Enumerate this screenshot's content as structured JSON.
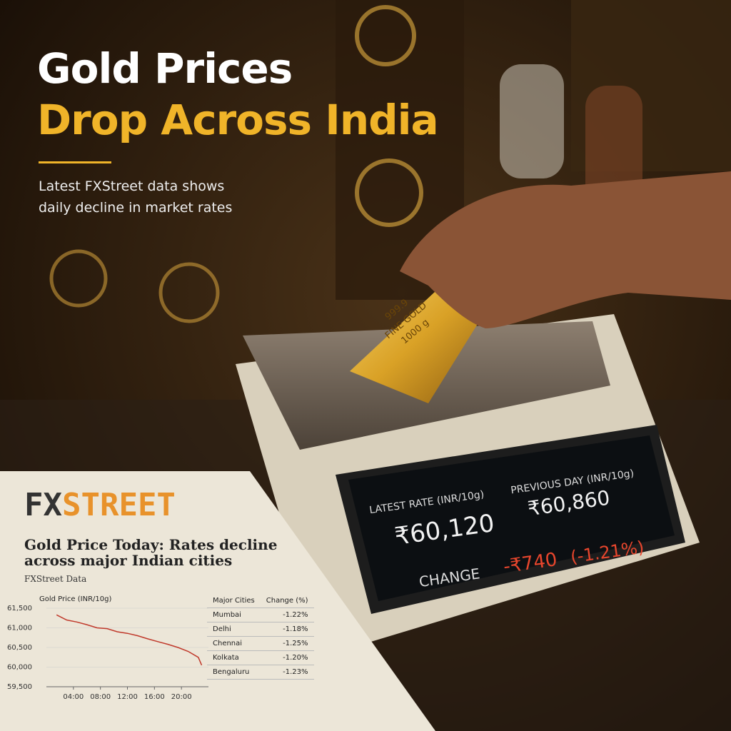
{
  "headline": {
    "line1": "Gold Prices",
    "line2": "Drop Across India"
  },
  "subtitle": {
    "line1": "Latest FXStreet data shows",
    "line2": "daily decline in market rates"
  },
  "gold_bar": {
    "purity": "999.9",
    "grade": "FINE GOLD",
    "weight": "1000 g"
  },
  "scale_display": {
    "latest_label": "LATEST RATE (INR/10g)",
    "latest_value": "₹60,120",
    "previous_label": "PREVIOUS DAY (INR/10g)",
    "previous_value": "₹60,860",
    "change_label": "CHANGE",
    "change_value": "-₹740",
    "change_pct": "(-1.21%)"
  },
  "newspaper": {
    "brand_fx": "FX",
    "brand_street": "STREET",
    "headline": "Gold Price Today: Rates decline across major Indian cities",
    "byline": "FXStreet Data",
    "table": {
      "headers": [
        "Major Cities",
        "Change (%)"
      ],
      "rows": [
        [
          "Mumbai",
          "-1.22%"
        ],
        [
          "Delhi",
          "-1.18%"
        ],
        [
          "Chennai",
          "-1.25%"
        ],
        [
          "Kolkata",
          "-1.20%"
        ],
        [
          "Bengaluru",
          "-1.23%"
        ]
      ]
    }
  },
  "chart_data": {
    "type": "line",
    "title": "Gold Price (INR/10g)",
    "x": [
      1.5,
      3,
      4.5,
      6,
      7.5,
      9,
      10.5,
      12,
      13.5,
      15,
      16.5,
      18,
      19.5,
      21,
      22.5,
      23
    ],
    "values": [
      61330,
      61200,
      61150,
      61080,
      61000,
      60980,
      60900,
      60860,
      60800,
      60720,
      60650,
      60580,
      60500,
      60400,
      60250,
      60050
    ],
    "color": "#c0392b",
    "xlim": [
      0,
      24
    ],
    "xticks": [
      {
        "value": 4,
        "label": "04:00"
      },
      {
        "value": 8,
        "label": "08:00"
      },
      {
        "value": 12,
        "label": "12:00"
      },
      {
        "value": 16,
        "label": "16:00"
      },
      {
        "value": 20,
        "label": "20:00"
      }
    ],
    "ylim": [
      59500,
      61500
    ],
    "yticks": [
      {
        "value": 59500,
        "label": "59,500"
      },
      {
        "value": 60000,
        "label": "60,000"
      },
      {
        "value": 60500,
        "label": "60,500"
      },
      {
        "value": 61000,
        "label": "61,000"
      },
      {
        "value": 61500,
        "label": "61,500"
      }
    ],
    "grid": true
  }
}
